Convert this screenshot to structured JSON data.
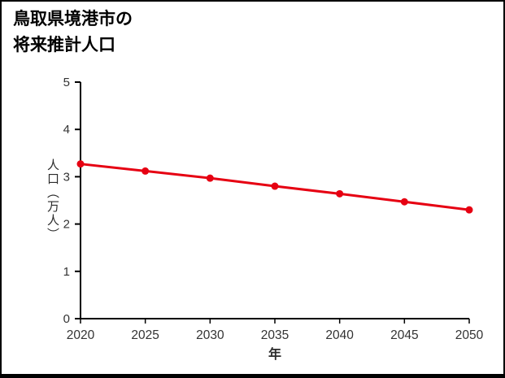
{
  "title": {
    "line1": "鳥取県境港市の",
    "line2": "将来推計人口"
  },
  "chart_data": {
    "type": "line",
    "title": "鳥取県境港市の将来推計人口",
    "xlabel": "年",
    "ylabel": "人口（万人）",
    "categories": [
      "2020",
      "2025",
      "2030",
      "2035",
      "2040",
      "2045",
      "2050"
    ],
    "series": [
      {
        "name": "将来推計人口",
        "values": [
          3.27,
          3.12,
          2.97,
          2.8,
          2.64,
          2.47,
          2.3
        ],
        "color": "#e60012"
      }
    ],
    "ylim": [
      0,
      5
    ],
    "yticks": [
      0,
      1,
      2,
      3,
      4,
      5
    ],
    "xlim": [
      2020,
      2050
    ],
    "grid": false,
    "legend": false,
    "axis_color": "#000000",
    "tick_label_color": "#333333"
  }
}
